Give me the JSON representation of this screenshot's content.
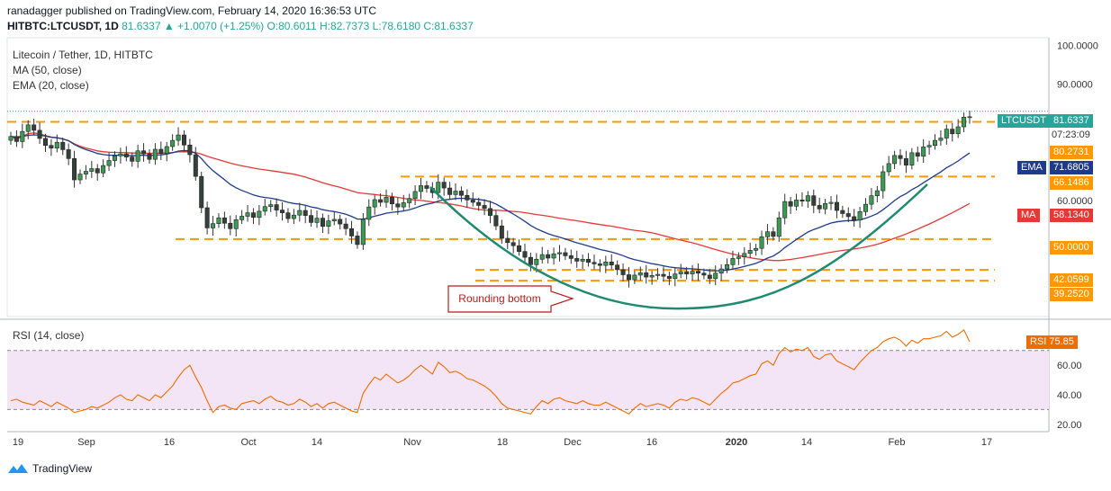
{
  "header": {
    "published": "ranadagger published on TradingView.com, February 14, 2020 16:36:53 UTC",
    "symbol": "HITBTC:LTCUSDT, 1D",
    "ohlc": "81.6337 ▲ +1.0070 (+1.25%) O:80.6011 H:82.7373 L:78.6180 C:81.6337"
  },
  "legend": {
    "title": "Litecoin / Tether, 1D, HITBTC",
    "ma": "MA (50, close)",
    "ema": "EMA (20, close)"
  },
  "rsi_legend": "RSI (14, close)",
  "annotation": "Rounding bottom",
  "footer": {
    "brand": "TradingView"
  },
  "colors": {
    "up": "#26a69a",
    "down": "#ef5350",
    "candle_fill_up": "#3c9a54",
    "candle_fill_down": "#36403a",
    "ma": "#e53935",
    "ema": "#1e3a8a",
    "level": "#ff9800",
    "curve": "#1f8a70",
    "rsi": "#ef6c00",
    "rsi_band": "#f3e5f5"
  },
  "chart_data": {
    "type": "candlestick",
    "x_ticks": [
      "19",
      "Sep",
      "16",
      "Oct",
      "14",
      "Nov",
      "18",
      "Dec",
      "16",
      "2020",
      "14",
      "Feb",
      "17"
    ],
    "y_ticks": [
      "100.0000",
      "90.0000",
      "60.0000"
    ],
    "ylim": [
      30,
      102
    ],
    "levels": [
      80.2731,
      66.1486,
      50.0,
      42.0599,
      39.252
    ],
    "price_labels": [
      {
        "text": "LTCUSDT",
        "value": "81.6337",
        "color": "#26a69a"
      },
      {
        "text": "",
        "value": "07:23:09",
        "color": "plain"
      },
      {
        "text": "",
        "value": "80.2731",
        "color": "#ff9800"
      },
      {
        "text": "EMA",
        "value": "71.6805",
        "color": "#1e3a8a"
      },
      {
        "text": "",
        "value": "66.1486",
        "color": "#ff9800"
      },
      {
        "text": "MA",
        "value": "58.1340",
        "color": "#e53935"
      },
      {
        "text": "",
        "value": "50.0000",
        "color": "#ff9800"
      },
      {
        "text": "",
        "value": "42.0599",
        "color": "#ff9800"
      },
      {
        "text": "",
        "value": "39.2520",
        "color": "#ff9800"
      }
    ],
    "close": [
      76.5,
      75.2,
      77.8,
      79.5,
      78.1,
      76.0,
      74.2,
      73.5,
      75.0,
      73.1,
      70.8,
      65.3,
      66.8,
      67.5,
      68.2,
      67.1,
      69.0,
      70.3,
      71.5,
      72.0,
      71.2,
      70.1,
      72.8,
      72.0,
      70.6,
      73.2,
      72.1,
      73.9,
      75.5,
      76.9,
      74.3,
      71.8,
      66.2,
      58.1,
      52.9,
      54.0,
      55.5,
      54.1,
      52.7,
      55.0,
      55.9,
      56.8,
      55.6,
      57.2,
      58.4,
      58.9,
      57.5,
      56.8,
      55.3,
      56.2,
      57.4,
      56.1,
      54.3,
      55.4,
      53.3,
      54.7,
      55.1,
      53.9,
      52.7,
      50.8,
      48.6,
      55.1,
      58.3,
      60.2,
      59.5,
      60.8,
      59.1,
      58.3,
      59.4,
      60.5,
      62.3,
      63.8,
      63.1,
      62.0,
      64.7,
      63.2,
      61.5,
      62.4,
      61.3,
      60.1,
      59.5,
      58.7,
      57.9,
      56.1,
      53.4,
      50.2,
      49.1,
      48.3,
      46.8,
      45.3,
      43.4,
      44.8,
      46.0,
      45.1,
      46.2,
      46.5,
      45.7,
      45.0,
      44.3,
      44.8,
      44.0,
      43.6,
      43.2,
      44.1,
      43.3,
      42.1,
      40.8,
      39.5,
      40.7,
      41.3,
      40.2,
      40.6,
      40.9,
      40.4,
      39.8,
      41.0,
      41.6,
      41.0,
      41.7,
      41.2,
      40.7,
      39.8,
      41.2,
      42.3,
      43.4,
      45.0,
      45.4,
      46.3,
      47.1,
      47.6,
      50.6,
      51.9,
      50.7,
      55.5,
      59.7,
      58.5,
      60.1,
      59.8,
      61.2,
      58.7,
      57.8,
      59.2,
      59.5,
      57.4,
      56.6,
      55.8,
      54.9,
      57.1,
      59.0,
      61.2,
      62.5,
      67.4,
      69.5,
      71.6,
      70.8,
      69.1,
      72.3,
      71.4,
      73.8,
      74.2,
      75.5,
      76.1,
      78.4,
      77.2,
      79.0,
      81.5,
      81.6
    ]
  },
  "rsi_data": {
    "ylim": [
      15,
      90
    ],
    "y_ticks": [
      60,
      40,
      20
    ],
    "bands": [
      70,
      30
    ],
    "last_label": "RSI",
    "last_value": "75.85",
    "values": [
      36,
      37,
      35,
      34,
      33,
      36,
      34,
      32,
      35,
      33,
      31,
      28,
      29,
      30,
      32,
      31,
      33,
      35,
      38,
      40,
      37,
      36,
      40,
      38,
      36,
      40,
      38,
      42,
      46,
      52,
      57,
      60,
      52,
      45,
      36,
      28,
      32,
      33,
      31,
      30,
      34,
      35,
      36,
      34,
      37,
      39,
      36,
      35,
      33,
      34,
      37,
      35,
      32,
      34,
      31,
      34,
      35,
      33,
      31,
      29,
      28,
      41,
      47,
      52,
      50,
      54,
      51,
      48,
      50,
      53,
      57,
      60,
      57,
      54,
      62,
      59,
      55,
      56,
      54,
      51,
      50,
      48,
      46,
      43,
      39,
      34,
      31,
      30,
      29,
      28,
      27,
      32,
      36,
      34,
      37,
      38,
      36,
      35,
      34,
      36,
      34,
      33,
      33,
      35,
      33,
      31,
      29,
      27,
      31,
      34,
      32,
      33,
      34,
      33,
      31,
      35,
      37,
      36,
      38,
      37,
      35,
      33,
      37,
      41,
      44,
      48,
      49,
      51,
      53,
      54,
      61,
      63,
      60,
      68,
      72,
      69,
      71,
      70,
      72,
      66,
      64,
      67,
      68,
      63,
      61,
      59,
      57,
      62,
      66,
      70,
      72,
      76,
      78,
      79,
      77,
      73,
      77,
      75,
      78,
      78,
      79,
      80,
      83,
      79,
      81,
      84,
      75.85
    ]
  }
}
